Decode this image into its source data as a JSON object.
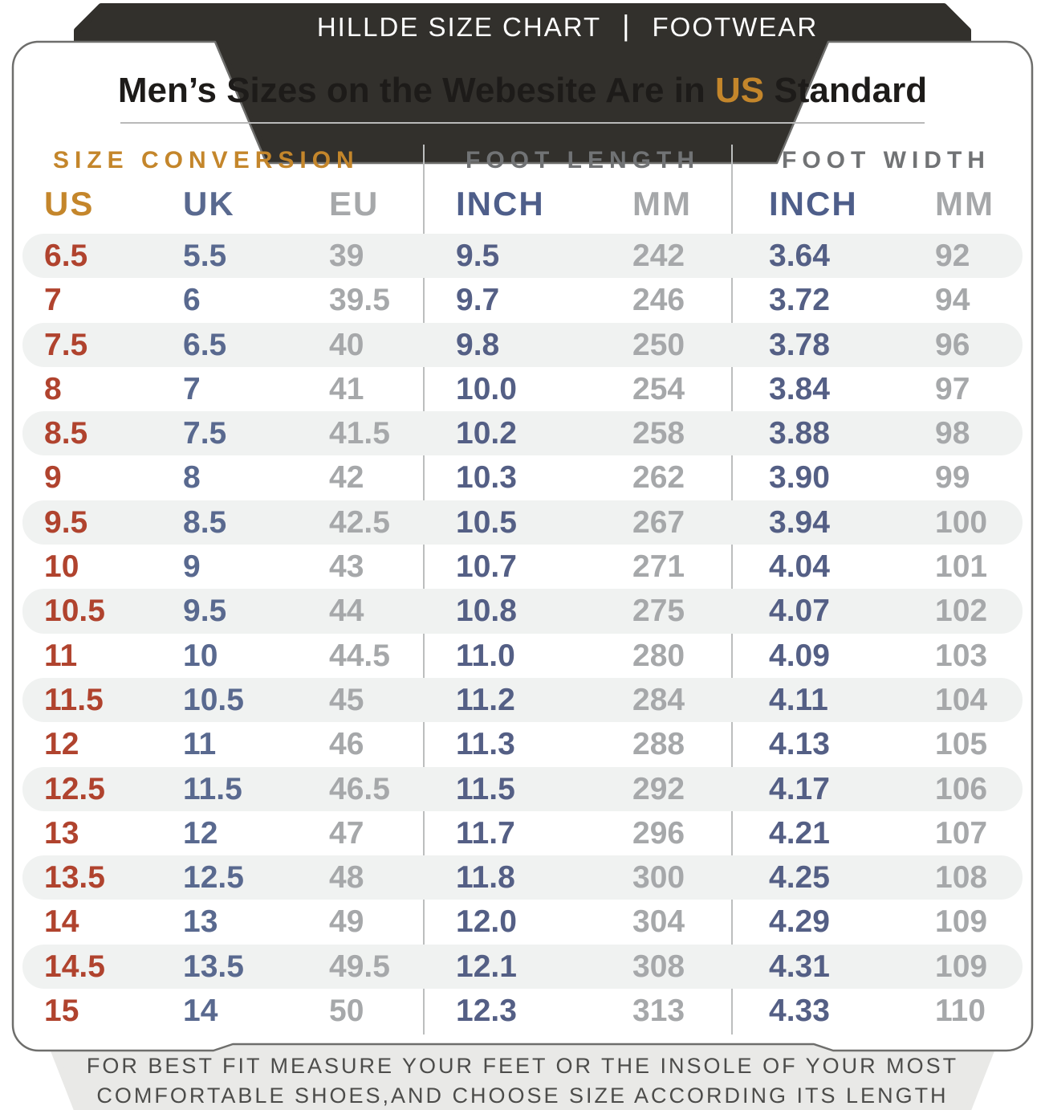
{
  "header_bar": {
    "brand": "HILLDE SIZE CHART",
    "separator": "|",
    "category": "FOOTWEAR"
  },
  "title": {
    "prefix": "Men’s Sizes on the Webesite Are in ",
    "highlight": "US",
    "suffix": " Standard"
  },
  "groups": {
    "conversion": "SIZE CONVERSION",
    "length": "FOOT LENGTH",
    "width": "FOOT WIDTH"
  },
  "column_headers": [
    "US",
    "UK",
    "EU",
    "INCH",
    "MM",
    "INCH",
    "MM"
  ],
  "footer": {
    "line1": "FOR BEST FIT MEASURE YOUR FEET OR THE INSOLE OF YOUR MOST",
    "line2": "COMFORTABLE SHOES,AND CHOOSE SIZE ACCORDING ITS LENGTH"
  },
  "colors": {
    "dark_bar": "#32302c",
    "gold": "#c4862b",
    "red": "#b0432e",
    "blue": "#545f85",
    "gray": "#a6a8aa",
    "stripe": "#f0f2f1",
    "card_border": "#6e6e6c",
    "footer_panel": "#e9e9e7"
  },
  "chart_data": {
    "type": "table",
    "title": "Men’s Sizes on the Webesite Are in US Standard",
    "column_groups": [
      "SIZE CONVERSION",
      "FOOT LENGTH",
      "FOOT WIDTH"
    ],
    "columns": [
      "US",
      "UK",
      "EU",
      "FOOT LENGTH INCH",
      "FOOT LENGTH MM",
      "FOOT WIDTH INCH",
      "FOOT WIDTH MM"
    ],
    "rows": [
      [
        "6.5",
        "5.5",
        "39",
        "9.5",
        "242",
        "3.64",
        "92"
      ],
      [
        "7",
        "6",
        "39.5",
        "9.7",
        "246",
        "3.72",
        "94"
      ],
      [
        "7.5",
        "6.5",
        "40",
        "9.8",
        "250",
        "3.78",
        "96"
      ],
      [
        "8",
        "7",
        "41",
        "10.0",
        "254",
        "3.84",
        "97"
      ],
      [
        "8.5",
        "7.5",
        "41.5",
        "10.2",
        "258",
        "3.88",
        "98"
      ],
      [
        "9",
        "8",
        "42",
        "10.3",
        "262",
        "3.90",
        "99"
      ],
      [
        "9.5",
        "8.5",
        "42.5",
        "10.5",
        "267",
        "3.94",
        "100"
      ],
      [
        "10",
        "9",
        "43",
        "10.7",
        "271",
        "4.04",
        "101"
      ],
      [
        "10.5",
        "9.5",
        "44",
        "10.8",
        "275",
        "4.07",
        "102"
      ],
      [
        "11",
        "10",
        "44.5",
        "11.0",
        "280",
        "4.09",
        "103"
      ],
      [
        "11.5",
        "10.5",
        "45",
        "11.2",
        "284",
        "4.11",
        "104"
      ],
      [
        "12",
        "11",
        "46",
        "11.3",
        "288",
        "4.13",
        "105"
      ],
      [
        "12.5",
        "11.5",
        "46.5",
        "11.5",
        "292",
        "4.17",
        "106"
      ],
      [
        "13",
        "12",
        "47",
        "11.7",
        "296",
        "4.21",
        "107"
      ],
      [
        "13.5",
        "12.5",
        "48",
        "11.8",
        "300",
        "4.25",
        "108"
      ],
      [
        "14",
        "13",
        "49",
        "12.0",
        "304",
        "4.29",
        "109"
      ],
      [
        "14.5",
        "13.5",
        "49.5",
        "12.1",
        "308",
        "4.31",
        "109"
      ],
      [
        "15",
        "14",
        "50",
        "12.3",
        "313",
        "4.33",
        "110"
      ]
    ]
  }
}
